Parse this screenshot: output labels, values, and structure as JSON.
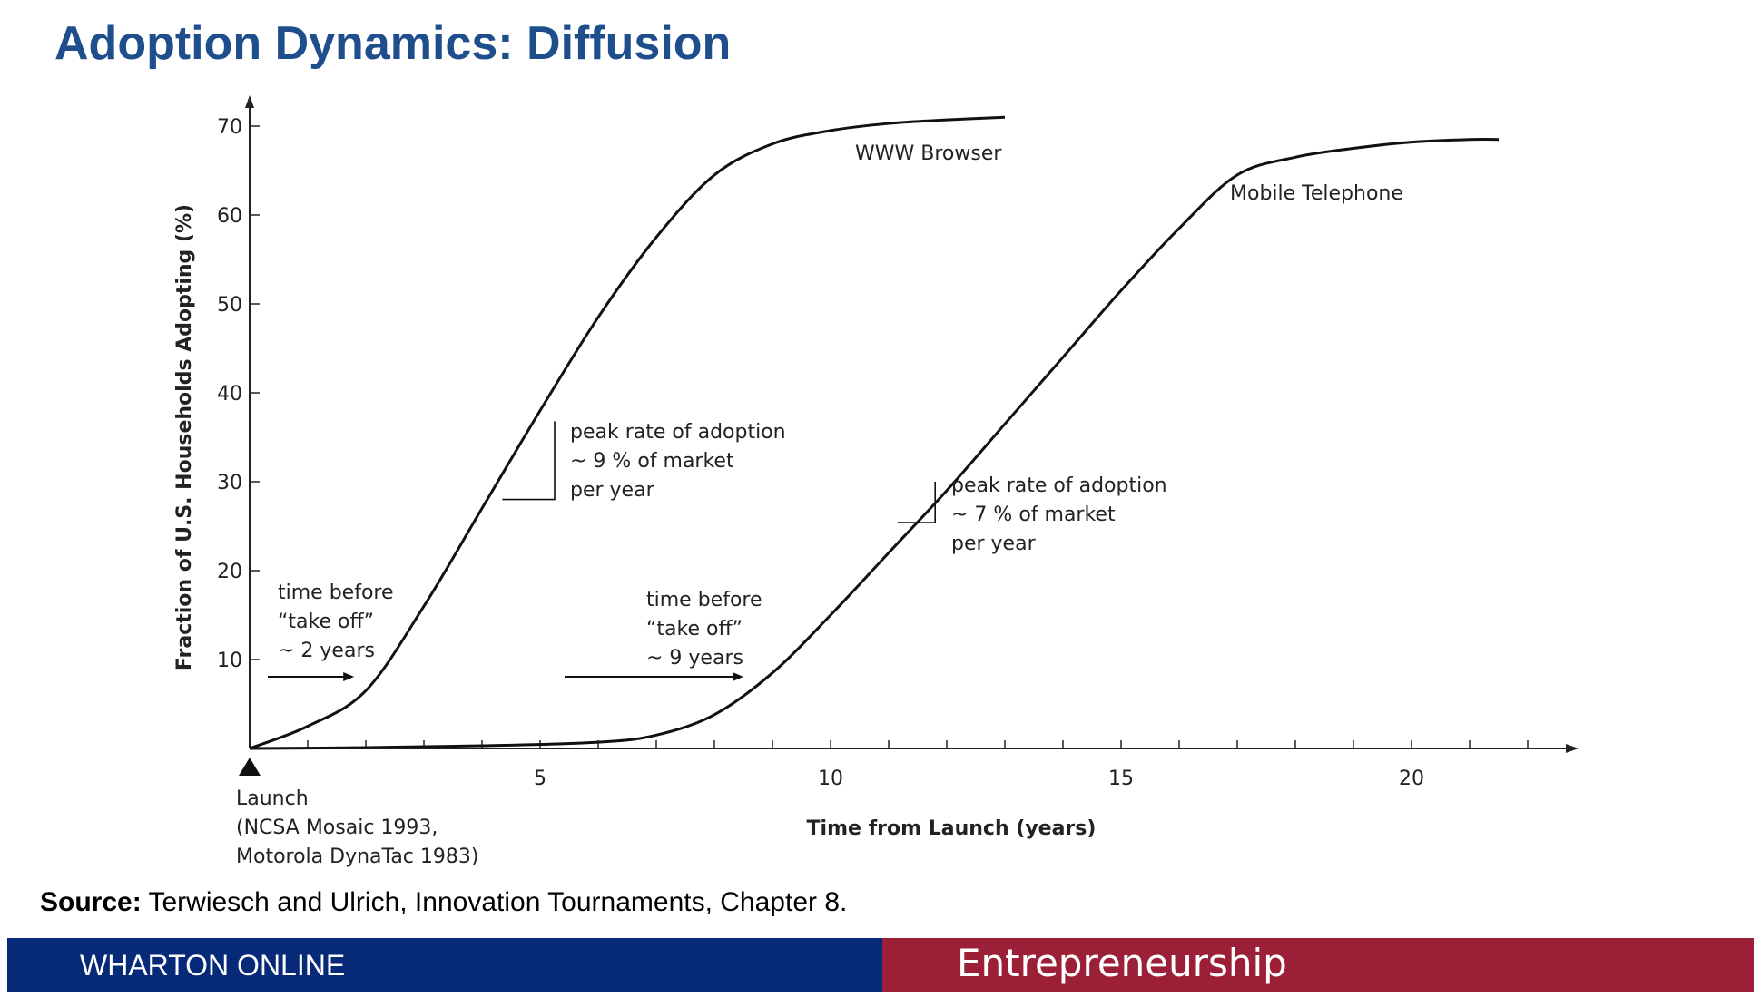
{
  "slide": {
    "title": "Adoption Dynamics: Diffusion",
    "source_label": "Source:",
    "source_text": " Terwiesch and Ulrich, Innovation Tournaments, Chapter 8."
  },
  "footer": {
    "left_label": "WHARTON ONLINE",
    "right_label": "Entrepreneurship",
    "left_color": "#062a78",
    "right_color": "#9b1f36"
  },
  "chart_data": {
    "type": "line",
    "title": "",
    "xlabel": "Time from Launch (years)",
    "ylabel": "Fraction of U.S. Households Adopting (%)",
    "xlim": [
      0,
      22.5
    ],
    "ylim": [
      0,
      70
    ],
    "x_ticks": [
      5,
      10,
      15,
      20
    ],
    "y_ticks": [
      10,
      20,
      30,
      40,
      50,
      60,
      70
    ],
    "grid": false,
    "series": [
      {
        "name": "WWW Browser",
        "x": [
          0,
          1,
          2,
          3,
          4,
          5,
          6,
          7,
          8,
          9,
          10,
          11,
          12,
          13
        ],
        "y": [
          0,
          2.5,
          6.5,
          16,
          27,
          38,
          48.5,
          57.5,
          64.5,
          68,
          69.5,
          70.3,
          70.7,
          71
        ]
      },
      {
        "name": "Mobile Telephone",
        "x": [
          0,
          2,
          4,
          6,
          7,
          8,
          9,
          10,
          11,
          12,
          13,
          14,
          15,
          16,
          17,
          18,
          19,
          20,
          21,
          21.5
        ],
        "y": [
          0,
          0.1,
          0.3,
          0.7,
          1.5,
          3.8,
          8.5,
          15,
          22,
          29,
          36.5,
          44,
          51.5,
          58.5,
          64.5,
          66.5,
          67.5,
          68.2,
          68.5,
          68.5
        ]
      }
    ],
    "annotations": {
      "launch": [
        "Launch",
        "(NCSA Mosaic 1993,",
        "Motorola DynaTac 1983)"
      ],
      "www_takeoff": [
        "time before",
        "“take off”",
        "~ 2 years"
      ],
      "mobile_takeoff": [
        "time before",
        "“take off”",
        "~ 9 years"
      ],
      "www_peak": [
        "peak rate of adoption",
        "~ 9 % of market",
        "per year"
      ],
      "mobile_peak": [
        "peak rate of adoption",
        "~ 7 % of market",
        "per year"
      ]
    }
  }
}
